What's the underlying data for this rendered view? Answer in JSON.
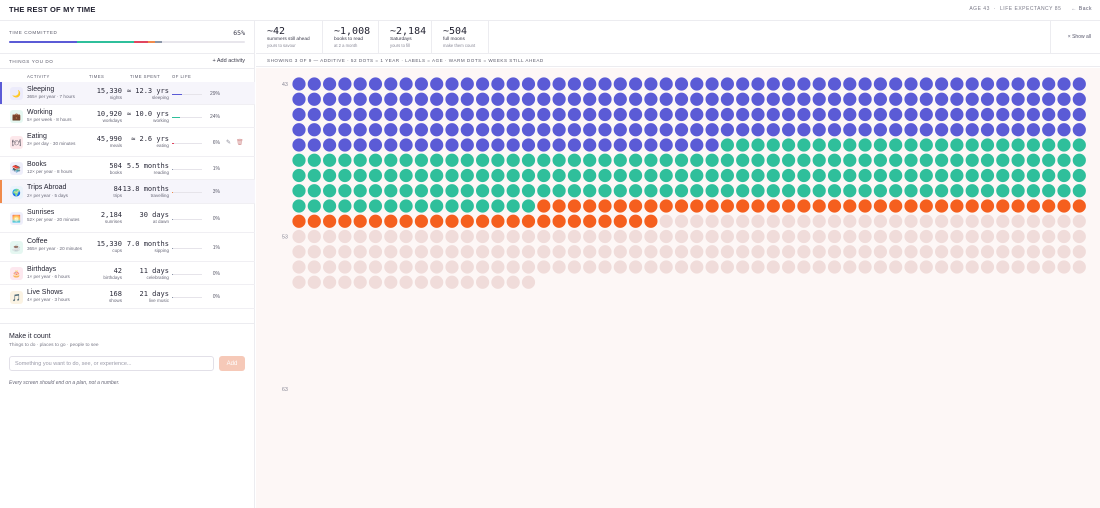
{
  "header": {
    "title": "THE REST OF MY TIME",
    "age": "AGE 43",
    "separator": "·",
    "life_expectancy": "LIFE EXPECTANCY 85",
    "back_label": "Back"
  },
  "time_committed": {
    "label": "TIME COMMITTED",
    "percent": "65%",
    "segments": [
      {
        "activity": "Sleeping",
        "value": 0.29,
        "color": "#5b5bd6"
      },
      {
        "activity": "Working",
        "value": 0.24,
        "color": "#2fbf9b"
      },
      {
        "activity": "Eating",
        "value": 0.06,
        "color": "#e0455f"
      },
      {
        "activity": "Trips Abroad",
        "value": 0.03,
        "color": "#f08a4b"
      },
      {
        "activity": "Other",
        "value": 0.03,
        "color": "#8b96a8"
      }
    ]
  },
  "things": {
    "label": "THINGS YOU DO",
    "add_label": "+ Add activity"
  },
  "columns": {
    "activity": "ACTIVITY",
    "times": "TIMES",
    "time_spent": "TIME SPENT",
    "of_life": "OF LIFE"
  },
  "activities": [
    {
      "name": "Sleeping",
      "sub": "365× per year · 7 hours",
      "times": "15,330",
      "times_unit": "nights",
      "spent": "≈ 12.3 yrs",
      "spent_unit": "sleeping",
      "pct": "29%",
      "share": 0.29,
      "color": "#5b5bd6",
      "icon": "🌙",
      "icon_name": "moon-icon",
      "icon_bg": "#ecebfb"
    },
    {
      "name": "Working",
      "sub": "5× per week · 8 hours",
      "times": "10,920",
      "times_unit": "workdays",
      "spent": "≈ 10.0 yrs",
      "spent_unit": "working",
      "pct": "24%",
      "share": 0.24,
      "color": "#2fbf9b",
      "icon": "💼",
      "icon_name": "briefcase-icon",
      "icon_bg": "#e5f7f1"
    },
    {
      "name": "Eating",
      "sub": "3× per day · 30 minutes",
      "times": "45,990",
      "times_unit": "meals",
      "spent": "≈ 2.6 yrs",
      "spent_unit": "eating",
      "pct": "6%",
      "share": 0.06,
      "color": "#e0455f",
      "icon": "🍽",
      "icon_name": "plate-icon",
      "icon_bg": "#fde8eb"
    },
    {
      "name": "Books",
      "sub": "12× per year · 8 hours",
      "times": "504",
      "times_unit": "books",
      "spent": "5.5 months",
      "spent_unit": "reading",
      "pct": "1%",
      "share": 0.01,
      "color": "#8b96a8",
      "icon": "📚",
      "icon_name": "books-icon",
      "icon_bg": "#eeeefa"
    },
    {
      "name": "Trips Abroad",
      "sub": "2× per year · 5 days",
      "times": "84",
      "times_unit": "trips",
      "spent": "13.8 months",
      "spent_unit": "travelling",
      "pct": "3%",
      "share": 0.03,
      "color": "#f08a4b",
      "icon": "🌍",
      "icon_name": "globe-icon",
      "icon_bg": "#eaf3fb"
    },
    {
      "name": "Sunrises",
      "sub": "52× per year · 20 minutes",
      "times": "2,184",
      "times_unit": "sunrises",
      "spent": "30 days",
      "spent_unit": "at dawn",
      "pct": "0%",
      "share": 0.0,
      "color": "#8b96a8",
      "icon": "🌅",
      "icon_name": "sunrise-icon",
      "icon_bg": "#eeeefa"
    },
    {
      "name": "Coffee",
      "sub": "365× per year · 20 minutes",
      "times": "15,330",
      "times_unit": "cups",
      "spent": "7.0 months",
      "spent_unit": "sipping",
      "pct": "1%",
      "share": 0.01,
      "color": "#8b96a8",
      "icon": "☕",
      "icon_name": "coffee-icon",
      "icon_bg": "#e5f7f1"
    },
    {
      "name": "Birthdays",
      "sub": "1× per year · 6 hours",
      "times": "42",
      "times_unit": "birthdays",
      "spent": "11 days",
      "spent_unit": "celebrating",
      "pct": "0%",
      "share": 0.0,
      "color": "#8b96a8",
      "icon": "🎂",
      "icon_name": "cake-icon",
      "icon_bg": "#fde8ef"
    },
    {
      "name": "Live Shows",
      "sub": "4× per year · 3 hours",
      "times": "168",
      "times_unit": "shows",
      "spent": "21 days",
      "spent_unit": "live music",
      "pct": "0%",
      "share": 0.0,
      "color": "#8b96a8",
      "icon": "🎵",
      "icon_name": "music-note-icon",
      "icon_bg": "#fbf3e3"
    }
  ],
  "make_it_count": {
    "title": "Make it count",
    "subtitle": "Things to do · places to go · people to see",
    "input_placeholder": "Something you want to do, see, or experience...",
    "add_label": "Add",
    "note": "Every screen should end on a plan, not a number."
  },
  "stats": [
    {
      "value": "~42",
      "label": "summers still ahead",
      "sub": "yours to savour"
    },
    {
      "value": "~1,008",
      "label": "books to read",
      "sub": "at 2 a month"
    },
    {
      "value": "~2,184",
      "label": "Saturdays",
      "sub": "yours to fill"
    },
    {
      "value": "~504",
      "label": "full moons",
      "sub": "make them count"
    }
  ],
  "show_all_label": "Show all",
  "grid_info": "SHOWING 3 OF 9 — ADDITIVE · 52 DOTS = 1 YEAR · LABELS = AGE · WARM DOTS = WEEKS STILL AHEAD",
  "dot_grid": {
    "age_labels": [
      "43",
      "53",
      "63"
    ],
    "categories": [
      {
        "name": "Sleeping",
        "dots": 236,
        "color": "#5b5bd6"
      },
      {
        "name": "Working",
        "dots": 196,
        "color": "#2fbf9b"
      },
      {
        "name": "Trips Abroad",
        "dots": 60,
        "color": "#f55f1e"
      },
      {
        "name": "Remaining",
        "dots": 200,
        "color": "#f0dcda"
      }
    ]
  }
}
